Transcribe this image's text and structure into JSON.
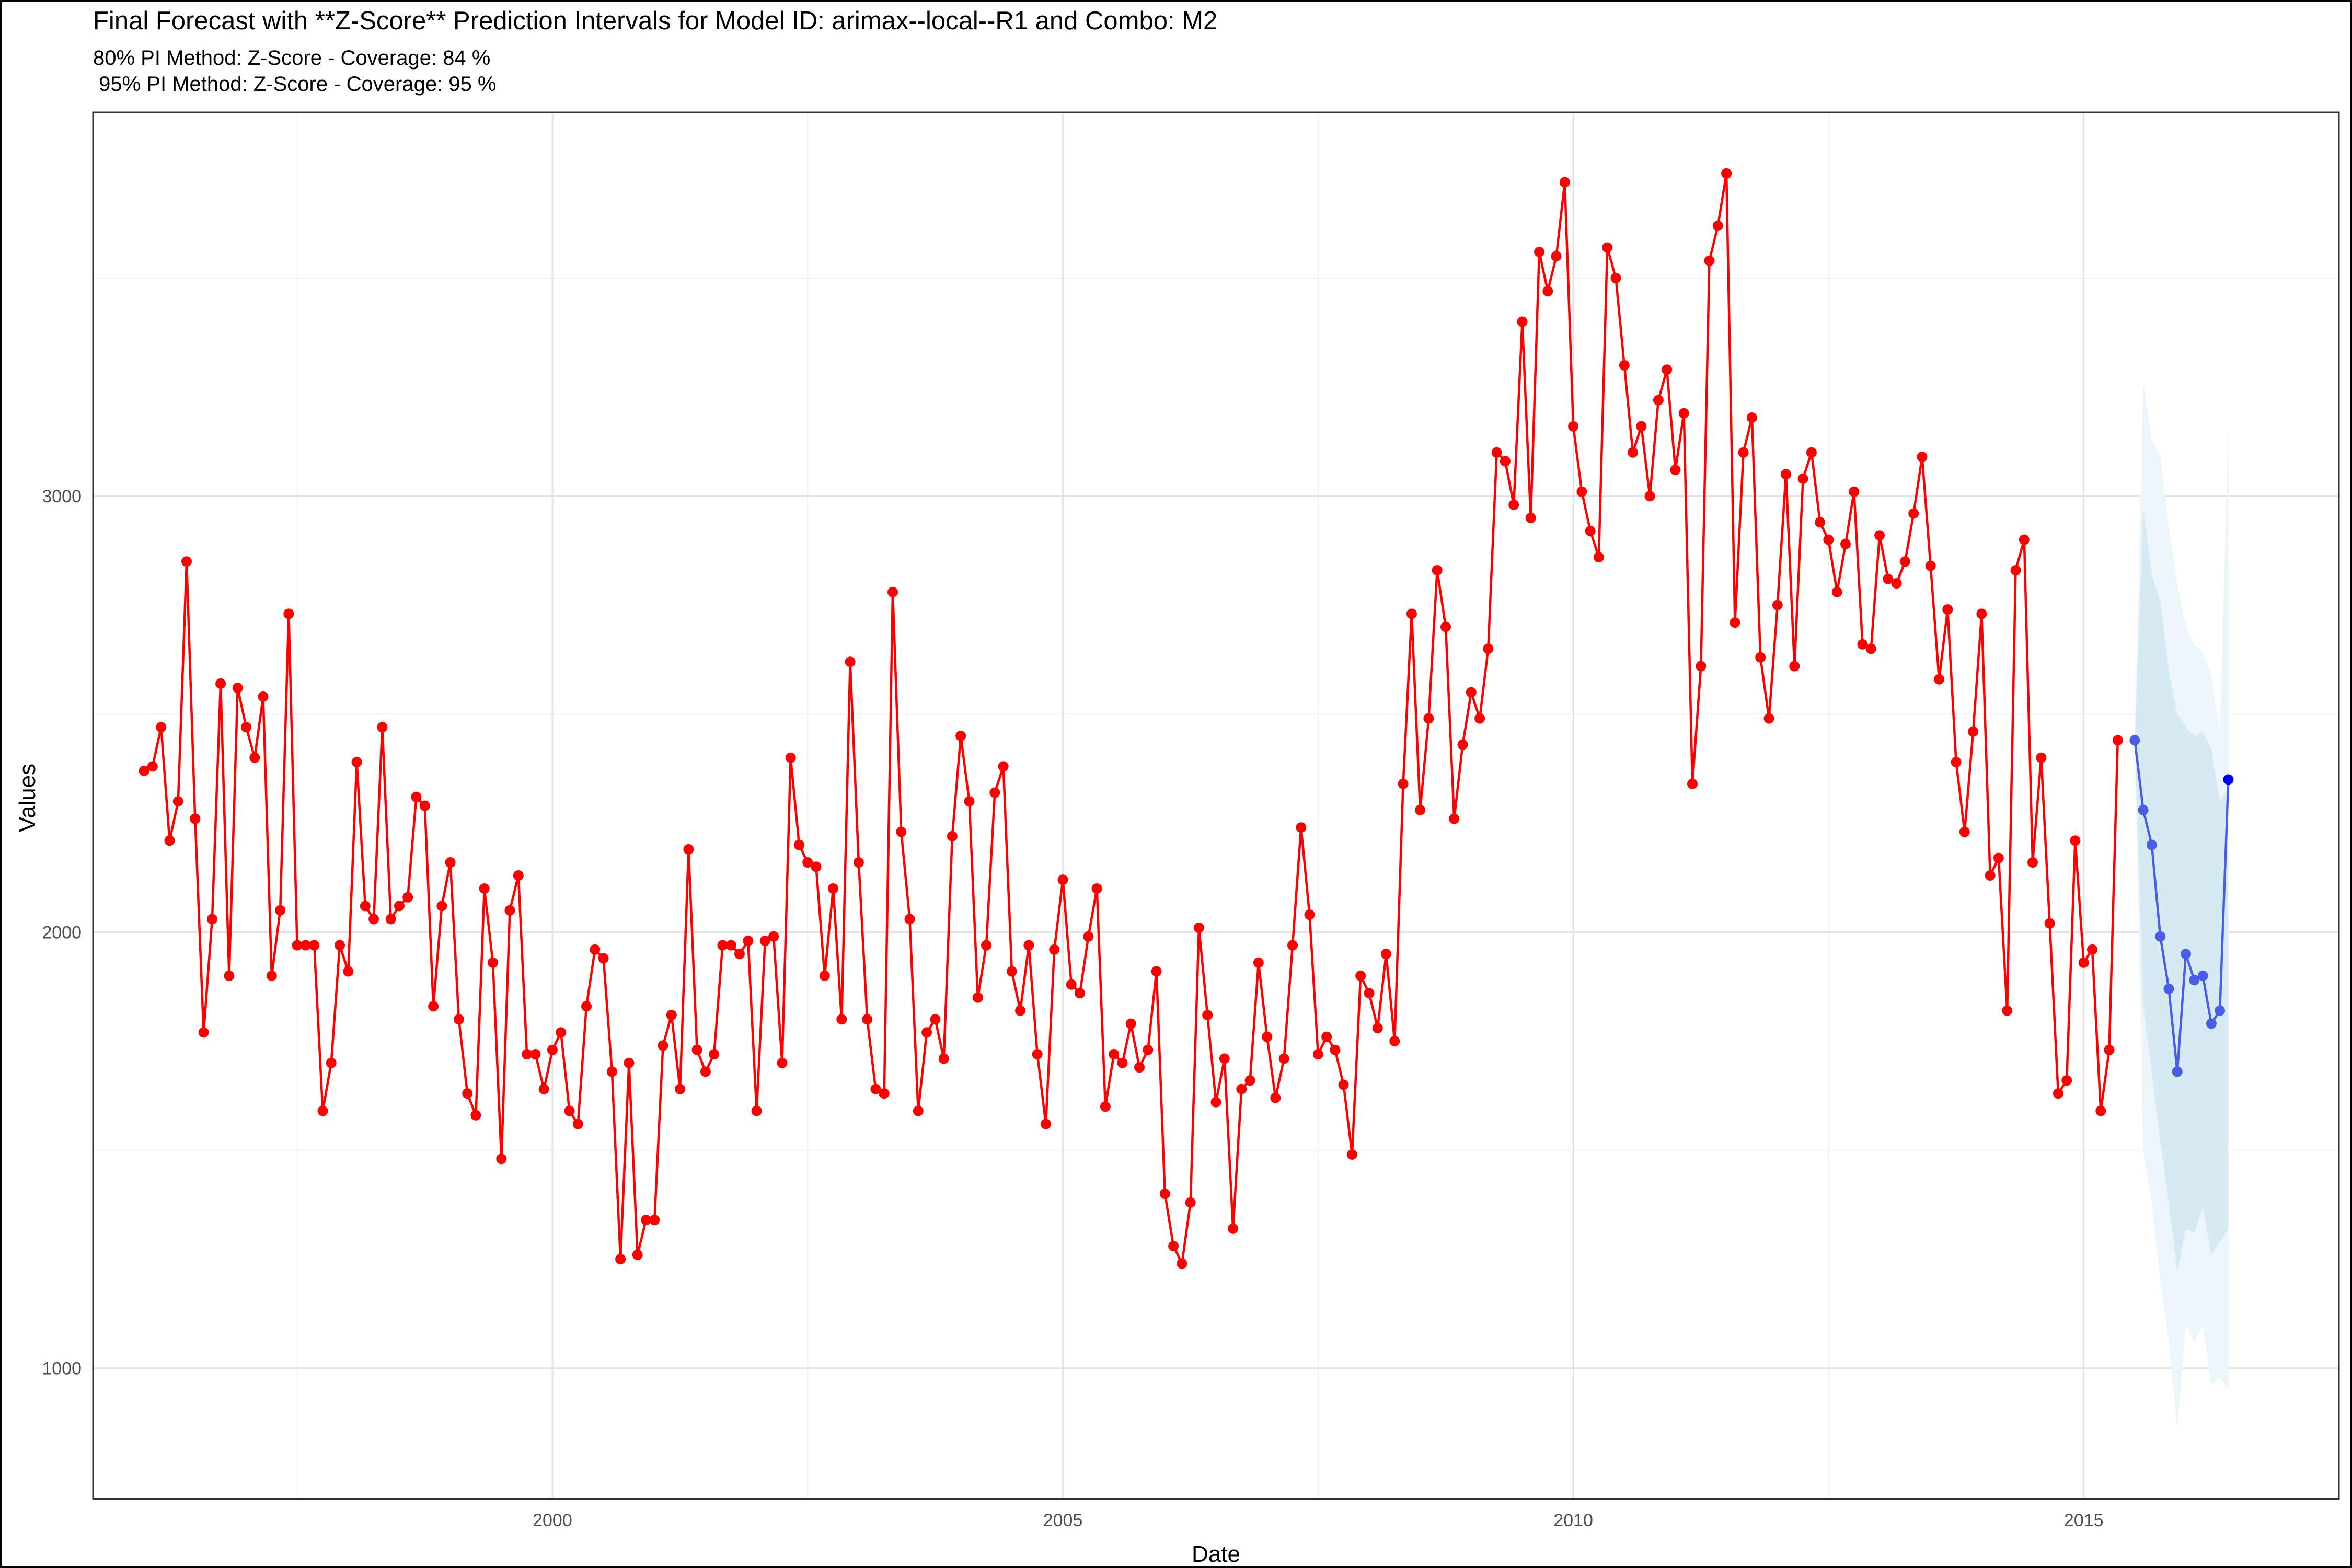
{
  "title": "Final Forecast with **Z-Score** Prediction Intervals for Model ID: arimax--local--R1 and Combo: M2",
  "subtitles": [
    "80% PI Method: Z-Score - Coverage: 84 %",
    " 95% PI Method: Z-Score - Coverage: 95 %"
  ],
  "colors": {
    "actual": "#ff0000",
    "forecast": "#4a5de6",
    "forecast_last_point": "#0000ff",
    "pi80": "#d6eaf3",
    "pi95": "#ecf5f9",
    "grid": "#e3e3e3",
    "axis_text": "#4d4d4d"
  },
  "chart_data": {
    "type": "line",
    "xlabel": "Date",
    "ylabel": "Values",
    "x_ticks": [
      2000,
      2005,
      2010,
      2015
    ],
    "y_ticks": [
      1000,
      2000,
      3000
    ],
    "xlim": [
      1995.5,
      2017.5
    ],
    "ylim": [
      700,
      3880
    ],
    "grid": true,
    "legend": "none",
    "series": [
      {
        "start_year": 1996,
        "start_month": 1,
        "values": [
          2370,
          2380,
          2470,
          2210,
          2300,
          2850,
          2260,
          1770,
          2030,
          2570,
          1900,
          2560,
          2470,
          2400,
          2540,
          1900,
          2050,
          2730,
          1970,
          1970,
          1970,
          1590,
          1700,
          1970,
          1910,
          2390,
          2060,
          2030,
          2470,
          2030,
          2060,
          2080,
          2310,
          2290,
          1830,
          2060,
          2160,
          1800,
          1630,
          1580,
          2100,
          1930,
          1480,
          2050,
          2130,
          1720,
          1720,
          1640,
          1730,
          1770,
          1590,
          1560,
          1830,
          1960,
          1940,
          1680,
          1250,
          1700,
          1260,
          1340,
          1340,
          1740,
          1810,
          1640,
          2190,
          1730,
          1680,
          1720,
          1970,
          1970,
          1950,
          1980,
          1590,
          1980,
          1990,
          1700,
          2400,
          2200,
          2160,
          2150,
          1900,
          2100,
          1800,
          2620,
          2160,
          1800,
          1640,
          1630,
          2780,
          2230,
          2030,
          1590,
          1770,
          1800,
          1710,
          2220,
          2450,
          2300,
          1850,
          1970,
          2320,
          2380,
          1910,
          1820,
          1970,
          1720,
          1560,
          1960,
          2120,
          1880,
          1860,
          1990,
          2100,
          1600,
          1720,
          1700,
          1790,
          1690,
          1730,
          1910,
          1400,
          1280,
          1240,
          1380,
          2010,
          1810,
          1610,
          1710,
          1320,
          1640,
          1660,
          1930,
          1760,
          1620,
          1710,
          1970,
          2240,
          2040,
          1720,
          1760,
          1730,
          1650,
          1490,
          1900,
          1860,
          1780,
          1950,
          1750,
          2340,
          2730,
          2280,
          2490,
          2830,
          2700,
          2260,
          2430,
          2550,
          2490,
          2650,
          3100,
          3080,
          2980,
          3400,
          2950,
          3560,
          3470,
          3550,
          3720,
          3160,
          3010,
          2920,
          2860,
          3570,
          3500,
          3300,
          3100,
          3160,
          3000,
          3220,
          3290,
          3060,
          3190,
          2340,
          2610,
          3540,
          3620,
          3740,
          2710,
          3100,
          3180,
          2630,
          2490,
          2750,
          3050,
          2610,
          3040,
          3100,
          2940,
          2900,
          2780,
          2890,
          3010,
          2660,
          2650,
          2910,
          2810,
          2800,
          2850,
          2960,
          3090,
          2840,
          2580,
          2740,
          2390,
          2230,
          2460,
          2730,
          2130,
          2170,
          1820,
          2830,
          2900,
          2160,
          2400,
          2020,
          1630,
          1660,
          2210,
          1930,
          1960,
          1590,
          1730,
          2440
        ]
      },
      {
        "start_year": 2015,
        "start_month": 7,
        "values": [
          2440,
          2280,
          2200,
          1990,
          1870,
          1680,
          1950,
          1890,
          1900,
          1790,
          1820,
          2350
        ],
        "pi80_upper": [
          2440,
          2970,
          2820,
          2760,
          2600,
          2500,
          2470,
          2450,
          2460,
          2420,
          2300,
          2330
        ],
        "pi80_lower": [
          2440,
          1830,
          1680,
          1520,
          1380,
          1220,
          1320,
          1310,
          1370,
          1260,
          1290,
          1320
        ],
        "pi95_upper": [
          2440,
          3260,
          3130,
          3090,
          2930,
          2800,
          2700,
          2660,
          2640,
          2590,
          2460,
          3160
        ],
        "pi95_lower": [
          2440,
          1500,
          1380,
          1200,
          1060,
          860,
          1100,
          1060,
          1100,
          960,
          980,
          950
        ]
      }
    ]
  }
}
